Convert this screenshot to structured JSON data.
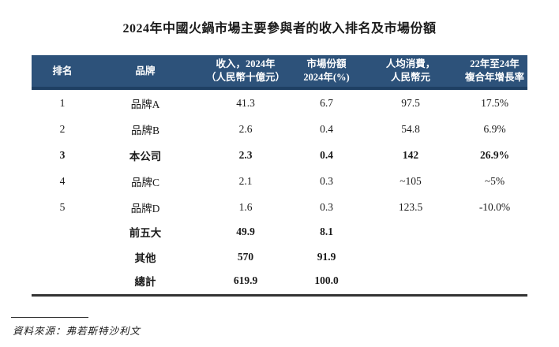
{
  "title": "2024年中國火鍋市場主要參與者的收入排名及市場份額",
  "colors": {
    "header_bg": "#2d527a",
    "header_border_bottom": "#1e3f63",
    "header_text": "#ffffff",
    "body_text": "#1a1a1a",
    "table_bottom_rule": "#333333"
  },
  "table": {
    "headers": [
      {
        "line1": "排名",
        "line2": ""
      },
      {
        "line1": "品牌",
        "line2": ""
      },
      {
        "line1": "收入，2024年",
        "line2": "（人民幣十億元）"
      },
      {
        "line1": "市場份額",
        "line2": "2024年(%)"
      },
      {
        "line1": "人均消費，",
        "line2": "人民幣元"
      },
      {
        "line1": "22年至24年",
        "line2": "複合年增長率"
      }
    ],
    "rows": [
      {
        "rank": "1",
        "brand": "品牌A",
        "revenue": "41.3",
        "share": "6.7",
        "per_capita": "97.5",
        "cagr": "17.5%",
        "bold": false
      },
      {
        "rank": "2",
        "brand": "品牌B",
        "revenue": "2.6",
        "share": "0.4",
        "per_capita": "54.8",
        "cagr": "6.9%",
        "bold": false
      },
      {
        "rank": "3",
        "brand": "本公司",
        "revenue": "2.3",
        "share": "0.4",
        "per_capita": "142",
        "cagr": "26.9%",
        "bold": true
      },
      {
        "rank": "4",
        "brand": "品牌C",
        "revenue": "2.1",
        "share": "0.3",
        "per_capita": "~105",
        "cagr": "~5%",
        "bold": false
      },
      {
        "rank": "5",
        "brand": "品牌D",
        "revenue": "1.6",
        "share": "0.3",
        "per_capita": "123.5",
        "cagr": "-10.0%",
        "bold": false
      },
      {
        "rank": "",
        "brand": "前五大",
        "revenue": "49.9",
        "share": "8.1",
        "per_capita": "",
        "cagr": "",
        "bold": true
      },
      {
        "rank": "",
        "brand": "其他",
        "revenue": "570",
        "share": "91.9",
        "per_capita": "",
        "cagr": "",
        "bold": true
      },
      {
        "rank": "",
        "brand": "總計",
        "revenue": "619.9",
        "share": "100.0",
        "per_capita": "",
        "cagr": "",
        "bold": true
      }
    ]
  },
  "source": "資料來源：弗若斯特沙利文"
}
